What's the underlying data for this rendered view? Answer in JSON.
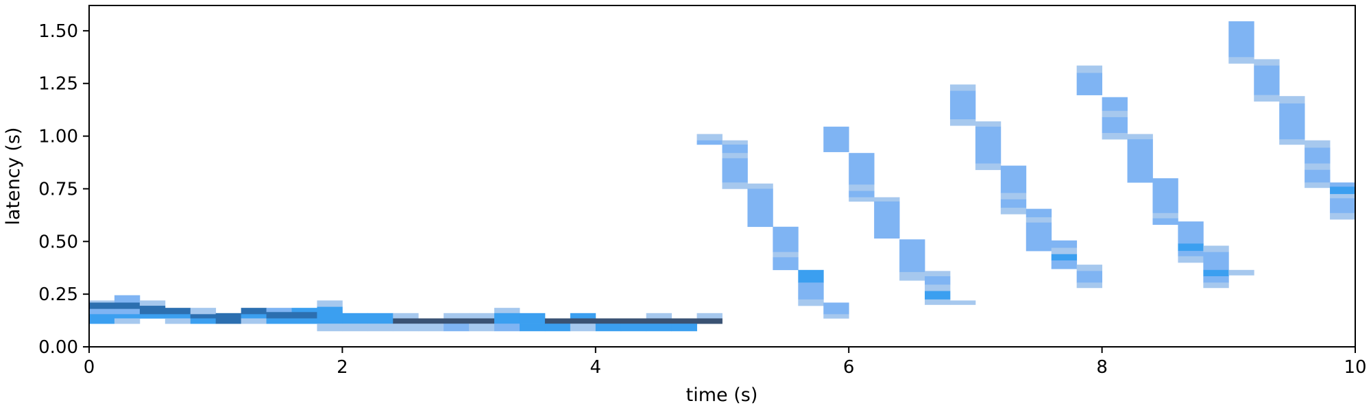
{
  "chart_data": {
    "type": "heatmap",
    "title": "",
    "xlabel": "time (s)",
    "ylabel": "latency (s)",
    "xlim": [
      0,
      10
    ],
    "ylim": [
      0,
      1.62
    ],
    "x_ticks": [
      0,
      2,
      4,
      6,
      8,
      10
    ],
    "x_tick_labels": [
      "0",
      "2",
      "4",
      "6",
      "8",
      "10"
    ],
    "y_ticks": [
      0,
      0.25,
      0.5,
      0.75,
      1.0,
      1.25,
      1.5
    ],
    "y_tick_labels": [
      "0.00",
      "0.25",
      "0.50",
      "0.75",
      "1.00",
      "1.25",
      "1.50"
    ],
    "grid": false,
    "bin_width_s": 0.2,
    "colors": {
      "low": "#a6c8ee",
      "mid": "#7fb4f3",
      "high": "#3b9ff0",
      "dark": "#2c6fb0",
      "max": "#3a5273"
    },
    "cells": [
      {
        "x": 0.0,
        "y0": 0.21,
        "y1": 0.22,
        "level": "low"
      },
      {
        "x": 0.0,
        "y0": 0.18,
        "y1": 0.21,
        "level": "dark"
      },
      {
        "x": 0.0,
        "y0": 0.155,
        "y1": 0.18,
        "level": "mid"
      },
      {
        "x": 0.0,
        "y0": 0.11,
        "y1": 0.155,
        "level": "high"
      },
      {
        "x": 0.2,
        "y0": 0.21,
        "y1": 0.245,
        "level": "mid"
      },
      {
        "x": 0.2,
        "y0": 0.18,
        "y1": 0.21,
        "level": "dark"
      },
      {
        "x": 0.2,
        "y0": 0.155,
        "y1": 0.18,
        "level": "mid"
      },
      {
        "x": 0.2,
        "y0": 0.135,
        "y1": 0.155,
        "level": "high"
      },
      {
        "x": 0.2,
        "y0": 0.11,
        "y1": 0.135,
        "level": "low"
      },
      {
        "x": 0.4,
        "y0": 0.195,
        "y1": 0.22,
        "level": "low"
      },
      {
        "x": 0.4,
        "y0": 0.155,
        "y1": 0.195,
        "level": "dark"
      },
      {
        "x": 0.4,
        "y0": 0.135,
        "y1": 0.155,
        "level": "high"
      },
      {
        "x": 0.6,
        "y0": 0.155,
        "y1": 0.185,
        "level": "dark"
      },
      {
        "x": 0.6,
        "y0": 0.135,
        "y1": 0.155,
        "level": "high"
      },
      {
        "x": 0.6,
        "y0": 0.11,
        "y1": 0.135,
        "level": "low"
      },
      {
        "x": 0.8,
        "y0": 0.155,
        "y1": 0.185,
        "level": "low"
      },
      {
        "x": 0.8,
        "y0": 0.135,
        "y1": 0.155,
        "level": "dark"
      },
      {
        "x": 0.8,
        "y0": 0.11,
        "y1": 0.135,
        "level": "high"
      },
      {
        "x": 1.0,
        "y0": 0.11,
        "y1": 0.16,
        "level": "dark"
      },
      {
        "x": 1.2,
        "y0": 0.155,
        "y1": 0.185,
        "level": "dark"
      },
      {
        "x": 1.2,
        "y0": 0.135,
        "y1": 0.155,
        "level": "high"
      },
      {
        "x": 1.2,
        "y0": 0.11,
        "y1": 0.135,
        "level": "low"
      },
      {
        "x": 1.4,
        "y0": 0.165,
        "y1": 0.185,
        "level": "mid"
      },
      {
        "x": 1.4,
        "y0": 0.135,
        "y1": 0.165,
        "level": "dark"
      },
      {
        "x": 1.4,
        "y0": 0.11,
        "y1": 0.135,
        "level": "high"
      },
      {
        "x": 1.6,
        "y0": 0.165,
        "y1": 0.185,
        "level": "high"
      },
      {
        "x": 1.6,
        "y0": 0.135,
        "y1": 0.165,
        "level": "dark"
      },
      {
        "x": 1.6,
        "y0": 0.11,
        "y1": 0.135,
        "level": "high"
      },
      {
        "x": 1.8,
        "y0": 0.19,
        "y1": 0.22,
        "level": "low"
      },
      {
        "x": 1.8,
        "y0": 0.11,
        "y1": 0.19,
        "level": "high"
      },
      {
        "x": 1.8,
        "y0": 0.075,
        "y1": 0.11,
        "level": "low"
      },
      {
        "x": 2.0,
        "y0": 0.11,
        "y1": 0.16,
        "level": "high"
      },
      {
        "x": 2.0,
        "y0": 0.075,
        "y1": 0.11,
        "level": "low"
      },
      {
        "x": 2.2,
        "y0": 0.11,
        "y1": 0.16,
        "level": "high"
      },
      {
        "x": 2.2,
        "y0": 0.075,
        "y1": 0.11,
        "level": "low"
      },
      {
        "x": 2.4,
        "y0": 0.135,
        "y1": 0.16,
        "level": "low"
      },
      {
        "x": 2.4,
        "y0": 0.11,
        "y1": 0.135,
        "level": "max"
      },
      {
        "x": 2.4,
        "y0": 0.075,
        "y1": 0.11,
        "level": "low"
      },
      {
        "x": 2.6,
        "y0": 0.11,
        "y1": 0.135,
        "level": "max"
      },
      {
        "x": 2.6,
        "y0": 0.075,
        "y1": 0.11,
        "level": "low"
      },
      {
        "x": 2.8,
        "y0": 0.135,
        "y1": 0.16,
        "level": "low"
      },
      {
        "x": 2.8,
        "y0": 0.11,
        "y1": 0.135,
        "level": "max"
      },
      {
        "x": 2.8,
        "y0": 0.075,
        "y1": 0.11,
        "level": "mid"
      },
      {
        "x": 3.0,
        "y0": 0.135,
        "y1": 0.16,
        "level": "low"
      },
      {
        "x": 3.0,
        "y0": 0.11,
        "y1": 0.135,
        "level": "max"
      },
      {
        "x": 3.0,
        "y0": 0.075,
        "y1": 0.11,
        "level": "low"
      },
      {
        "x": 3.2,
        "y0": 0.16,
        "y1": 0.185,
        "level": "low"
      },
      {
        "x": 3.2,
        "y0": 0.11,
        "y1": 0.16,
        "level": "high"
      },
      {
        "x": 3.2,
        "y0": 0.075,
        "y1": 0.11,
        "level": "mid"
      },
      {
        "x": 3.4,
        "y0": 0.11,
        "y1": 0.16,
        "level": "high"
      },
      {
        "x": 3.4,
        "y0": 0.075,
        "y1": 0.11,
        "level": "high"
      },
      {
        "x": 3.6,
        "y0": 0.11,
        "y1": 0.135,
        "level": "max"
      },
      {
        "x": 3.6,
        "y0": 0.075,
        "y1": 0.11,
        "level": "high"
      },
      {
        "x": 3.8,
        "y0": 0.135,
        "y1": 0.16,
        "level": "high"
      },
      {
        "x": 3.8,
        "y0": 0.11,
        "y1": 0.135,
        "level": "max"
      },
      {
        "x": 3.8,
        "y0": 0.075,
        "y1": 0.11,
        "level": "low"
      },
      {
        "x": 4.0,
        "y0": 0.11,
        "y1": 0.135,
        "level": "max"
      },
      {
        "x": 4.0,
        "y0": 0.075,
        "y1": 0.11,
        "level": "high"
      },
      {
        "x": 4.2,
        "y0": 0.11,
        "y1": 0.135,
        "level": "max"
      },
      {
        "x": 4.2,
        "y0": 0.075,
        "y1": 0.11,
        "level": "high"
      },
      {
        "x": 4.4,
        "y0": 0.135,
        "y1": 0.16,
        "level": "low"
      },
      {
        "x": 4.4,
        "y0": 0.11,
        "y1": 0.135,
        "level": "max"
      },
      {
        "x": 4.4,
        "y0": 0.075,
        "y1": 0.11,
        "level": "high"
      },
      {
        "x": 4.6,
        "y0": 0.11,
        "y1": 0.135,
        "level": "max"
      },
      {
        "x": 4.6,
        "y0": 0.075,
        "y1": 0.11,
        "level": "high"
      },
      {
        "x": 4.8,
        "y0": 0.135,
        "y1": 0.16,
        "level": "low"
      },
      {
        "x": 4.8,
        "y0": 0.11,
        "y1": 0.135,
        "level": "max"
      },
      {
        "x": 4.8,
        "y0": 0.98,
        "y1": 1.01,
        "level": "low"
      },
      {
        "x": 4.8,
        "y0": 0.96,
        "y1": 0.98,
        "level": "mid"
      },
      {
        "x": 5.0,
        "y0": 0.96,
        "y1": 0.98,
        "level": "low"
      },
      {
        "x": 5.0,
        "y0": 0.92,
        "y1": 0.96,
        "level": "mid"
      },
      {
        "x": 5.0,
        "y0": 0.895,
        "y1": 0.92,
        "level": "low"
      },
      {
        "x": 5.0,
        "y0": 0.78,
        "y1": 0.895,
        "level": "mid"
      },
      {
        "x": 5.0,
        "y0": 0.75,
        "y1": 0.78,
        "level": "low"
      },
      {
        "x": 5.2,
        "y0": 0.75,
        "y1": 0.775,
        "level": "low"
      },
      {
        "x": 5.2,
        "y0": 0.57,
        "y1": 0.75,
        "level": "mid"
      },
      {
        "x": 5.4,
        "y0": 0.45,
        "y1": 0.57,
        "level": "mid"
      },
      {
        "x": 5.4,
        "y0": 0.425,
        "y1": 0.45,
        "level": "low"
      },
      {
        "x": 5.4,
        "y0": 0.365,
        "y1": 0.425,
        "level": "mid"
      },
      {
        "x": 5.6,
        "y0": 0.305,
        "y1": 0.365,
        "level": "high"
      },
      {
        "x": 5.6,
        "y0": 0.225,
        "y1": 0.305,
        "level": "mid"
      },
      {
        "x": 5.6,
        "y0": 0.195,
        "y1": 0.225,
        "level": "low"
      },
      {
        "x": 5.8,
        "y0": 0.155,
        "y1": 0.21,
        "level": "mid"
      },
      {
        "x": 5.8,
        "y0": 0.135,
        "y1": 0.155,
        "level": "low"
      },
      {
        "x": 5.8,
        "y0": 0.925,
        "y1": 1.045,
        "level": "mid"
      },
      {
        "x": 6.0,
        "y0": 0.77,
        "y1": 0.92,
        "level": "mid"
      },
      {
        "x": 6.0,
        "y0": 0.74,
        "y1": 0.77,
        "level": "low"
      },
      {
        "x": 6.0,
        "y0": 0.71,
        "y1": 0.74,
        "level": "mid"
      },
      {
        "x": 6.0,
        "y0": 0.69,
        "y1": 0.71,
        "level": "low"
      },
      {
        "x": 6.2,
        "y0": 0.69,
        "y1": 0.71,
        "level": "low"
      },
      {
        "x": 6.2,
        "y0": 0.515,
        "y1": 0.69,
        "level": "mid"
      },
      {
        "x": 6.4,
        "y0": 0.355,
        "y1": 0.51,
        "level": "mid"
      },
      {
        "x": 6.4,
        "y0": 0.315,
        "y1": 0.355,
        "level": "low"
      },
      {
        "x": 6.6,
        "y0": 0.335,
        "y1": 0.36,
        "level": "low"
      },
      {
        "x": 6.6,
        "y0": 0.295,
        "y1": 0.335,
        "level": "mid"
      },
      {
        "x": 6.6,
        "y0": 0.265,
        "y1": 0.295,
        "level": "low"
      },
      {
        "x": 6.6,
        "y0": 0.225,
        "y1": 0.265,
        "level": "high"
      },
      {
        "x": 6.6,
        "y0": 0.2,
        "y1": 0.225,
        "level": "low"
      },
      {
        "x": 6.8,
        "y0": 0.2,
        "y1": 0.22,
        "level": "low"
      },
      {
        "x": 6.8,
        "y0": 1.215,
        "y1": 1.245,
        "level": "low"
      },
      {
        "x": 6.8,
        "y0": 1.08,
        "y1": 1.215,
        "level": "mid"
      },
      {
        "x": 6.8,
        "y0": 1.05,
        "y1": 1.08,
        "level": "low"
      },
      {
        "x": 7.0,
        "y0": 1.045,
        "y1": 1.07,
        "level": "low"
      },
      {
        "x": 7.0,
        "y0": 0.87,
        "y1": 1.045,
        "level": "mid"
      },
      {
        "x": 7.0,
        "y0": 0.84,
        "y1": 0.87,
        "level": "low"
      },
      {
        "x": 7.2,
        "y0": 0.73,
        "y1": 0.86,
        "level": "mid"
      },
      {
        "x": 7.2,
        "y0": 0.7,
        "y1": 0.73,
        "level": "low"
      },
      {
        "x": 7.2,
        "y0": 0.66,
        "y1": 0.7,
        "level": "mid"
      },
      {
        "x": 7.2,
        "y0": 0.63,
        "y1": 0.66,
        "level": "low"
      },
      {
        "x": 7.4,
        "y0": 0.615,
        "y1": 0.655,
        "level": "mid"
      },
      {
        "x": 7.4,
        "y0": 0.59,
        "y1": 0.615,
        "level": "low"
      },
      {
        "x": 7.4,
        "y0": 0.455,
        "y1": 0.59,
        "level": "mid"
      },
      {
        "x": 7.6,
        "y0": 0.47,
        "y1": 0.505,
        "level": "mid"
      },
      {
        "x": 7.6,
        "y0": 0.44,
        "y1": 0.47,
        "level": "low"
      },
      {
        "x": 7.6,
        "y0": 0.41,
        "y1": 0.44,
        "level": "high"
      },
      {
        "x": 7.6,
        "y0": 0.37,
        "y1": 0.41,
        "level": "mid"
      },
      {
        "x": 7.8,
        "y0": 0.36,
        "y1": 0.39,
        "level": "low"
      },
      {
        "x": 7.8,
        "y0": 0.305,
        "y1": 0.36,
        "level": "mid"
      },
      {
        "x": 7.8,
        "y0": 0.28,
        "y1": 0.305,
        "level": "low"
      },
      {
        "x": 7.8,
        "y0": 1.3,
        "y1": 1.335,
        "level": "low"
      },
      {
        "x": 7.8,
        "y0": 1.195,
        "y1": 1.3,
        "level": "mid"
      },
      {
        "x": 8.0,
        "y0": 1.12,
        "y1": 1.185,
        "level": "mid"
      },
      {
        "x": 8.0,
        "y0": 1.09,
        "y1": 1.12,
        "level": "low"
      },
      {
        "x": 8.0,
        "y0": 1.015,
        "y1": 1.09,
        "level": "mid"
      },
      {
        "x": 8.0,
        "y0": 0.985,
        "y1": 1.015,
        "level": "low"
      },
      {
        "x": 8.2,
        "y0": 0.985,
        "y1": 1.01,
        "level": "low"
      },
      {
        "x": 8.2,
        "y0": 0.78,
        "y1": 0.985,
        "level": "mid"
      },
      {
        "x": 8.4,
        "y0": 0.635,
        "y1": 0.8,
        "level": "mid"
      },
      {
        "x": 8.4,
        "y0": 0.61,
        "y1": 0.635,
        "level": "low"
      },
      {
        "x": 8.4,
        "y0": 0.58,
        "y1": 0.61,
        "level": "mid"
      },
      {
        "x": 8.6,
        "y0": 0.49,
        "y1": 0.595,
        "level": "mid"
      },
      {
        "x": 8.6,
        "y0": 0.455,
        "y1": 0.49,
        "level": "high"
      },
      {
        "x": 8.6,
        "y0": 0.43,
        "y1": 0.455,
        "level": "mid"
      },
      {
        "x": 8.6,
        "y0": 0.4,
        "y1": 0.43,
        "level": "low"
      },
      {
        "x": 8.8,
        "y0": 0.45,
        "y1": 0.48,
        "level": "low"
      },
      {
        "x": 8.8,
        "y0": 0.365,
        "y1": 0.45,
        "level": "mid"
      },
      {
        "x": 8.8,
        "y0": 0.335,
        "y1": 0.365,
        "level": "high"
      },
      {
        "x": 8.8,
        "y0": 0.305,
        "y1": 0.335,
        "level": "mid"
      },
      {
        "x": 8.8,
        "y0": 0.28,
        "y1": 0.305,
        "level": "low"
      },
      {
        "x": 9.0,
        "y0": 0.34,
        "y1": 0.365,
        "level": "low"
      },
      {
        "x": 9.0,
        "y0": 1.375,
        "y1": 1.545,
        "level": "mid"
      },
      {
        "x": 9.0,
        "y0": 1.345,
        "y1": 1.375,
        "level": "low"
      },
      {
        "x": 9.2,
        "y0": 1.335,
        "y1": 1.365,
        "level": "low"
      },
      {
        "x": 9.2,
        "y0": 1.195,
        "y1": 1.335,
        "level": "mid"
      },
      {
        "x": 9.2,
        "y0": 1.165,
        "y1": 1.195,
        "level": "low"
      },
      {
        "x": 9.4,
        "y0": 1.155,
        "y1": 1.19,
        "level": "low"
      },
      {
        "x": 9.4,
        "y0": 0.985,
        "y1": 1.155,
        "level": "mid"
      },
      {
        "x": 9.4,
        "y0": 0.96,
        "y1": 0.985,
        "level": "low"
      },
      {
        "x": 9.6,
        "y0": 0.945,
        "y1": 0.98,
        "level": "low"
      },
      {
        "x": 9.6,
        "y0": 0.87,
        "y1": 0.945,
        "level": "mid"
      },
      {
        "x": 9.6,
        "y0": 0.84,
        "y1": 0.87,
        "level": "low"
      },
      {
        "x": 9.6,
        "y0": 0.78,
        "y1": 0.84,
        "level": "mid"
      },
      {
        "x": 9.6,
        "y0": 0.755,
        "y1": 0.78,
        "level": "low"
      },
      {
        "x": 9.8,
        "y0": 0.76,
        "y1": 0.78,
        "level": "mid"
      },
      {
        "x": 9.8,
        "y0": 0.725,
        "y1": 0.76,
        "level": "high"
      },
      {
        "x": 9.8,
        "y0": 0.705,
        "y1": 0.725,
        "level": "low"
      },
      {
        "x": 9.8,
        "y0": 0.635,
        "y1": 0.705,
        "level": "mid"
      },
      {
        "x": 9.8,
        "y0": 0.605,
        "y1": 0.635,
        "level": "low"
      }
    ]
  }
}
